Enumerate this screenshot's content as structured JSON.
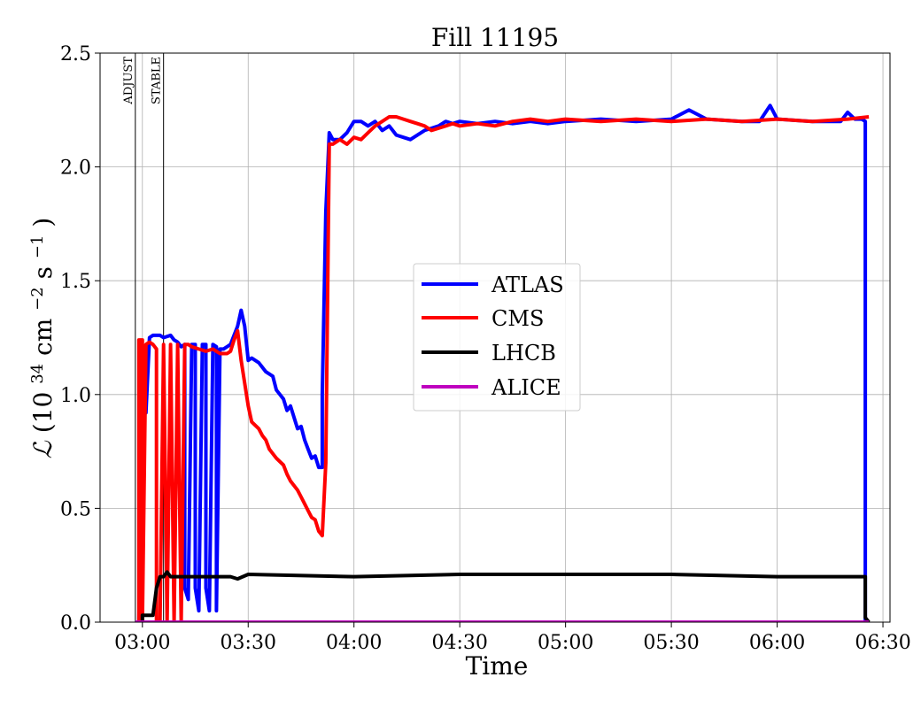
{
  "chart_data": {
    "type": "line",
    "title": "Fill 11195",
    "xlabel": "Time",
    "ylabel_symbol": "ℒ",
    "ylabel_paren_open": "(10",
    "ylabel_exp1": "34",
    "ylabel_unit_mid": " cm",
    "ylabel_exp2": "−2",
    "ylabel_unit_end": "s",
    "ylabel_exp3": "−1",
    "ylabel_paren_close": ")",
    "ylim": [
      0,
      2.5
    ],
    "xlim": [
      "02:48",
      "06:32"
    ],
    "x_ticks": [
      "03:00",
      "03:30",
      "04:00",
      "04:30",
      "05:00",
      "05:30",
      "06:00",
      "06:30"
    ],
    "y_ticks": [
      "0.0",
      "0.5",
      "1.0",
      "1.5",
      "2.0",
      "2.5"
    ],
    "grid": true,
    "legend_position": "center-right",
    "markers": [
      {
        "label": "ADJUST",
        "x": "02:58"
      },
      {
        "label": "STABLE",
        "x": "03:06"
      }
    ],
    "series": [
      {
        "name": "ATLAS",
        "color": "#0000ff",
        "points": [
          [
            "02:58",
            0.0
          ],
          [
            "02:59",
            0.0
          ],
          [
            "03:00",
            1.1
          ],
          [
            "03:01",
            1.2
          ],
          [
            "03:01",
            0.92
          ],
          [
            "03:02",
            1.25
          ],
          [
            "03:03",
            1.26
          ],
          [
            "03:05",
            1.26
          ],
          [
            "03:06",
            1.25
          ],
          [
            "03:08",
            1.26
          ],
          [
            "03:09",
            1.24
          ],
          [
            "03:10",
            1.23
          ],
          [
            "03:11",
            1.21
          ],
          [
            "03:12",
            1.22
          ],
          [
            "03:12",
            0.15
          ],
          [
            "03:13",
            0.1
          ],
          [
            "03:14",
            1.22
          ],
          [
            "03:15",
            1.22
          ],
          [
            "03:15",
            0.15
          ],
          [
            "03:16",
            0.05
          ],
          [
            "03:17",
            1.22
          ],
          [
            "03:18",
            1.22
          ],
          [
            "03:18",
            0.15
          ],
          [
            "03:19",
            0.05
          ],
          [
            "03:20",
            1.22
          ],
          [
            "03:21",
            1.21
          ],
          [
            "03:21",
            0.05
          ],
          [
            "03:22",
            1.2
          ],
          [
            "03:23",
            1.2
          ],
          [
            "03:25",
            1.22
          ],
          [
            "03:27",
            1.3
          ],
          [
            "03:28",
            1.37
          ],
          [
            "03:29",
            1.3
          ],
          [
            "03:30",
            1.15
          ],
          [
            "03:31",
            1.16
          ],
          [
            "03:33",
            1.14
          ],
          [
            "03:35",
            1.1
          ],
          [
            "03:37",
            1.08
          ],
          [
            "03:38",
            1.02
          ],
          [
            "03:40",
            0.98
          ],
          [
            "03:41",
            0.93
          ],
          [
            "03:42",
            0.95
          ],
          [
            "03:44",
            0.85
          ],
          [
            "03:45",
            0.86
          ],
          [
            "03:46",
            0.8
          ],
          [
            "03:47",
            0.76
          ],
          [
            "03:48",
            0.72
          ],
          [
            "03:49",
            0.73
          ],
          [
            "03:50",
            0.68
          ],
          [
            "03:51",
            0.68
          ],
          [
            "03:51",
            1.0
          ],
          [
            "03:52",
            1.8
          ],
          [
            "03:53",
            2.15
          ],
          [
            "03:54",
            2.12
          ],
          [
            "03:56",
            2.12
          ],
          [
            "03:58",
            2.15
          ],
          [
            "04:00",
            2.2
          ],
          [
            "04:02",
            2.2
          ],
          [
            "04:04",
            2.18
          ],
          [
            "04:06",
            2.2
          ],
          [
            "04:08",
            2.16
          ],
          [
            "04:10",
            2.18
          ],
          [
            "04:12",
            2.14
          ],
          [
            "04:14",
            2.13
          ],
          [
            "04:16",
            2.12
          ],
          [
            "04:18",
            2.14
          ],
          [
            "04:20",
            2.16
          ],
          [
            "04:22",
            2.17
          ],
          [
            "04:24",
            2.18
          ],
          [
            "04:26",
            2.2
          ],
          [
            "04:28",
            2.19
          ],
          [
            "04:30",
            2.2
          ],
          [
            "04:35",
            2.19
          ],
          [
            "04:40",
            2.2
          ],
          [
            "04:45",
            2.19
          ],
          [
            "04:50",
            2.2
          ],
          [
            "04:55",
            2.19
          ],
          [
            "05:00",
            2.2
          ],
          [
            "05:10",
            2.21
          ],
          [
            "05:20",
            2.2
          ],
          [
            "05:30",
            2.21
          ],
          [
            "05:35",
            2.25
          ],
          [
            "05:40",
            2.21
          ],
          [
            "05:50",
            2.2
          ],
          [
            "05:55",
            2.2
          ],
          [
            "05:58",
            2.27
          ],
          [
            "06:00",
            2.21
          ],
          [
            "06:10",
            2.2
          ],
          [
            "06:18",
            2.2
          ],
          [
            "06:20",
            2.24
          ],
          [
            "06:22",
            2.21
          ],
          [
            "06:24",
            2.21
          ],
          [
            "06:25",
            2.2
          ],
          [
            "06:25",
            0.0
          ],
          [
            "06:26",
            0.0
          ]
        ]
      },
      {
        "name": "CMS",
        "color": "#ff0000",
        "points": [
          [
            "02:59",
            0.0
          ],
          [
            "02:59",
            1.24
          ],
          [
            "03:00",
            1.24
          ],
          [
            "03:00",
            0.0
          ],
          [
            "03:01",
            1.22
          ],
          [
            "03:02",
            1.23
          ],
          [
            "03:03",
            1.22
          ],
          [
            "03:04",
            1.2
          ],
          [
            "03:04",
            0.0
          ],
          [
            "03:05",
            0.0
          ],
          [
            "03:06",
            1.22
          ],
          [
            "03:06",
            1.22
          ],
          [
            "03:07",
            0.0
          ],
          [
            "03:07",
            0.0
          ],
          [
            "03:08",
            1.22
          ],
          [
            "03:08",
            1.22
          ],
          [
            "03:09",
            0.0
          ],
          [
            "03:09",
            0.0
          ],
          [
            "03:10",
            1.22
          ],
          [
            "03:10",
            1.22
          ],
          [
            "03:11",
            0.0
          ],
          [
            "03:11",
            0.0
          ],
          [
            "03:12",
            1.22
          ],
          [
            "03:13",
            1.22
          ],
          [
            "03:14",
            1.21
          ],
          [
            "03:16",
            1.2
          ],
          [
            "03:18",
            1.19
          ],
          [
            "03:20",
            1.2
          ],
          [
            "03:22",
            1.18
          ],
          [
            "03:24",
            1.18
          ],
          [
            "03:25",
            1.19
          ],
          [
            "03:26",
            1.24
          ],
          [
            "03:27",
            1.28
          ],
          [
            "03:28",
            1.15
          ],
          [
            "03:29",
            1.05
          ],
          [
            "03:30",
            0.95
          ],
          [
            "03:31",
            0.88
          ],
          [
            "03:33",
            0.85
          ],
          [
            "03:34",
            0.82
          ],
          [
            "03:35",
            0.8
          ],
          [
            "03:36",
            0.76
          ],
          [
            "03:38",
            0.72
          ],
          [
            "03:40",
            0.69
          ],
          [
            "03:41",
            0.65
          ],
          [
            "03:42",
            0.62
          ],
          [
            "03:44",
            0.58
          ],
          [
            "03:45",
            0.55
          ],
          [
            "03:46",
            0.52
          ],
          [
            "03:47",
            0.49
          ],
          [
            "03:48",
            0.46
          ],
          [
            "03:49",
            0.45
          ],
          [
            "03:50",
            0.4
          ],
          [
            "03:51",
            0.38
          ],
          [
            "03:52",
            0.7
          ],
          [
            "03:53",
            2.1
          ],
          [
            "03:54",
            2.1
          ],
          [
            "03:56",
            2.12
          ],
          [
            "03:58",
            2.1
          ],
          [
            "04:00",
            2.13
          ],
          [
            "04:02",
            2.12
          ],
          [
            "04:04",
            2.15
          ],
          [
            "04:06",
            2.18
          ],
          [
            "04:08",
            2.2
          ],
          [
            "04:10",
            2.22
          ],
          [
            "04:12",
            2.22
          ],
          [
            "04:14",
            2.21
          ],
          [
            "04:16",
            2.2
          ],
          [
            "04:18",
            2.19
          ],
          [
            "04:20",
            2.18
          ],
          [
            "04:22",
            2.16
          ],
          [
            "04:24",
            2.17
          ],
          [
            "04:26",
            2.18
          ],
          [
            "04:28",
            2.19
          ],
          [
            "04:30",
            2.18
          ],
          [
            "04:35",
            2.19
          ],
          [
            "04:40",
            2.18
          ],
          [
            "04:45",
            2.2
          ],
          [
            "04:50",
            2.21
          ],
          [
            "04:55",
            2.2
          ],
          [
            "05:00",
            2.21
          ],
          [
            "05:10",
            2.2
          ],
          [
            "05:20",
            2.21
          ],
          [
            "05:30",
            2.2
          ],
          [
            "05:40",
            2.21
          ],
          [
            "05:50",
            2.2
          ],
          [
            "06:00",
            2.21
          ],
          [
            "06:10",
            2.2
          ],
          [
            "06:20",
            2.21
          ],
          [
            "06:26",
            2.22
          ]
        ]
      },
      {
        "name": "LHCB",
        "color": "#000000",
        "points": [
          [
            "02:58",
            0.0
          ],
          [
            "03:00",
            0.0
          ],
          [
            "03:00",
            0.03
          ],
          [
            "03:03",
            0.03
          ],
          [
            "03:04",
            0.15
          ],
          [
            "03:05",
            0.2
          ],
          [
            "03:06",
            0.2
          ],
          [
            "03:07",
            0.22
          ],
          [
            "03:08",
            0.2
          ],
          [
            "03:20",
            0.2
          ],
          [
            "03:25",
            0.2
          ],
          [
            "03:27",
            0.19
          ],
          [
            "03:30",
            0.21
          ],
          [
            "04:00",
            0.2
          ],
          [
            "04:30",
            0.21
          ],
          [
            "05:00",
            0.21
          ],
          [
            "05:30",
            0.21
          ],
          [
            "06:00",
            0.2
          ],
          [
            "06:25",
            0.2
          ],
          [
            "06:25",
            0.02
          ],
          [
            "06:26",
            0.0
          ]
        ]
      },
      {
        "name": "ALICE",
        "color": "#bf00bf",
        "points": [
          [
            "02:58",
            0.0
          ],
          [
            "06:26",
            0.0
          ]
        ]
      }
    ]
  }
}
